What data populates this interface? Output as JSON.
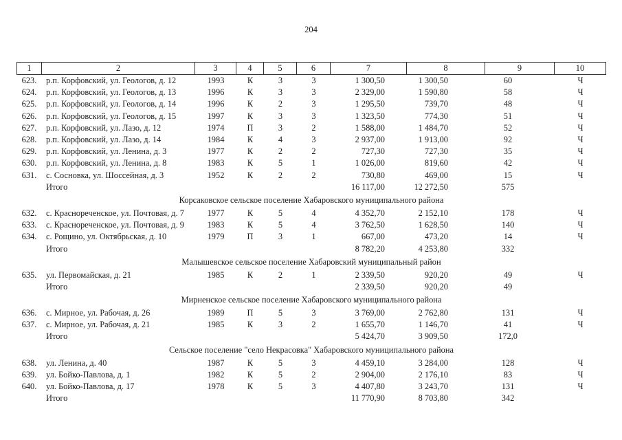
{
  "page": {
    "number": "204"
  },
  "table": {
    "columns": [
      "1",
      "2",
      "3",
      "4",
      "5",
      "6",
      "7",
      "8",
      "9",
      "10"
    ],
    "sections": [
      {
        "heading": "",
        "rows": [
          [
            "623.",
            "р.п. Корфовский, ул. Геологов, д. 12",
            "1993",
            "К",
            "3",
            "3",
            "1 300,50",
            "1 300,50",
            "60",
            "Ч"
          ],
          [
            "624.",
            "р.п. Корфовский, ул. Геологов, д. 13",
            "1996",
            "К",
            "3",
            "3",
            "2 329,00",
            "1 590,80",
            "58",
            "Ч"
          ],
          [
            "625.",
            "р.п. Корфовский, ул. Геологов, д. 14",
            "1996",
            "К",
            "2",
            "3",
            "1 295,50",
            "739,70",
            "48",
            "Ч"
          ],
          [
            "626.",
            "р.п. Корфовский, ул. Геологов, д. 15",
            "1997",
            "К",
            "3",
            "3",
            "1 323,50",
            "774,30",
            "51",
            "Ч"
          ],
          [
            "627.",
            "р.п. Корфовский, ул. Лазо, д. 12",
            "1974",
            "П",
            "3",
            "2",
            "1 588,00",
            "1 484,70",
            "52",
            "Ч"
          ],
          [
            "628.",
            "р.п. Корфовский, ул. Лазо, д. 14",
            "1984",
            "К",
            "4",
            "3",
            "2 937,00",
            "1 913,00",
            "92",
            "Ч"
          ],
          [
            "629.",
            "р.п. Корфовский, ул. Ленина, д. 3",
            "1977",
            "К",
            "2",
            "2",
            "727,30",
            "727,30",
            "35",
            "Ч"
          ],
          [
            "630.",
            "р.п. Корфовский, ул. Ленина, д. 8",
            "1983",
            "К",
            "5",
            "1",
            "1 026,00",
            "819,60",
            "42",
            "Ч"
          ],
          [
            "631.",
            "с. Сосновка, ул. Шоссейная, д. 3",
            "1952",
            "К",
            "2",
            "2",
            "730,80",
            "469,00",
            "15",
            "Ч"
          ]
        ],
        "total": [
          "",
          "Итого",
          "",
          "",
          "",
          "",
          "16 117,00",
          "12 272,50",
          "575",
          ""
        ]
      },
      {
        "heading": "Корсаковское сельское поселение Хабаровского муниципального района",
        "rows": [
          [
            "632.",
            "с. Краснореченское, ул. Почтовая, д. 7",
            "1977",
            "К",
            "5",
            "4",
            "4 352,70",
            "2 152,10",
            "178",
            "Ч"
          ],
          [
            "633.",
            "с. Краснореченское, ул. Почтовая, д. 9",
            "1983",
            "К",
            "5",
            "4",
            "3 762,50",
            "1 628,50",
            "140",
            "Ч"
          ],
          [
            "634.",
            "с. Рощино, ул. Октябрьская, д. 10",
            "1979",
            "П",
            "3",
            "1",
            "667,00",
            "473,20",
            "14",
            "Ч"
          ]
        ],
        "total": [
          "",
          "Итого",
          "",
          "",
          "",
          "",
          "8 782,20",
          "4 253,80",
          "332",
          ""
        ]
      },
      {
        "heading": "Малышевское сельское поселение Хабаровский муниципальный район",
        "rows": [
          [
            "635.",
            "ул. Первомайская, д. 21",
            "1985",
            "К",
            "2",
            "1",
            "2 339,50",
            "920,20",
            "49",
            "Ч"
          ]
        ],
        "total": [
          "",
          "Итого",
          "",
          "",
          "",
          "",
          "2 339,50",
          "920,20",
          "49",
          ""
        ]
      },
      {
        "heading": "Мирненское сельское поселение Хабаровского муниципального района",
        "rows": [
          [
            "636.",
            "с. Мирное, ул. Рабочая, д. 26",
            "1989",
            "П",
            "5",
            "3",
            "3 769,00",
            "2 762,80",
            "131",
            "Ч"
          ],
          [
            "637.",
            "с. Мирное, ул. Рабочая, д. 21",
            "1985",
            "К",
            "3",
            "2",
            "1 655,70",
            "1 146,70",
            "41",
            "Ч"
          ]
        ],
        "total": [
          "",
          "Итого",
          "",
          "",
          "",
          "",
          "5 424,70",
          "3 909,50",
          "172,0",
          ""
        ]
      },
      {
        "heading": "Сельское поселение \"село Некрасовка\" Хабаровского муниципального района",
        "rows": [
          [
            "638.",
            "ул. Ленина, д. 40",
            "1987",
            "К",
            "5",
            "3",
            "4 459,10",
            "3 284,00",
            "128",
            "Ч"
          ],
          [
            "639.",
            "ул. Бойко-Павлова, д. 1",
            "1982",
            "К",
            "5",
            "2",
            "2 904,00",
            "2 176,10",
            "83",
            "Ч"
          ],
          [
            "640.",
            "ул. Бойко-Павлова, д. 17",
            "1978",
            "К",
            "5",
            "3",
            "4 407,80",
            "3 243,70",
            "131",
            "Ч"
          ]
        ],
        "total": [
          "",
          "Итого",
          "",
          "",
          "",
          "",
          "11 770,90",
          "8 703,80",
          "342",
          ""
        ]
      }
    ]
  }
}
